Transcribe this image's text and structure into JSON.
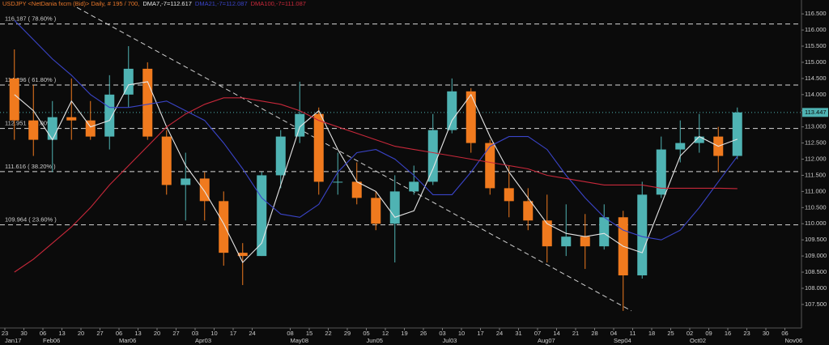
{
  "chart_data": {
    "type": "candlestick",
    "title": "USDJPY <NetDania fxcm (Bid)> Daily, # 195 / 700,",
    "title_color": "#e8772a",
    "categories": [
      "23",
      "30",
      "06",
      "13",
      "20",
      "27",
      "06",
      "13",
      "20",
      "27",
      "03",
      "10",
      "17",
      "24",
      null,
      "08",
      "15",
      "22",
      "29",
      "05",
      "12",
      "19",
      "26",
      "03",
      "10",
      "17",
      "24",
      "31",
      "07",
      "14",
      "21",
      "28",
      "04",
      "11",
      "18",
      "25",
      "02",
      "09",
      "16",
      "23",
      "30",
      "06"
    ],
    "month_labels": [
      "Jan17",
      null,
      "Feb06",
      null,
      null,
      null,
      "Mar06",
      null,
      null,
      null,
      "Apr03",
      null,
      null,
      null,
      null,
      "May08",
      null,
      null,
      null,
      "Jun05",
      null,
      null,
      null,
      "Jul03",
      null,
      null,
      null,
      null,
      "Aug07",
      null,
      null,
      null,
      "Sep04",
      null,
      null,
      null,
      "Oct02",
      null,
      null,
      null,
      null,
      "Nov06"
    ],
    "open": [
      114.5,
      113.2,
      112.6,
      113.3,
      113.2,
      112.7,
      114.0,
      114.8,
      112.7,
      111.2,
      111.4,
      110.7,
      109.1,
      109.0,
      111.5,
      112.7,
      113.4,
      111.3,
      111.3,
      110.8,
      110.0,
      111.0,
      111.3,
      112.9,
      114.1,
      112.5,
      111.1,
      110.7,
      110.1,
      109.3,
      109.6,
      109.3,
      110.2,
      108.4,
      110.9,
      112.3,
      112.5,
      112.7,
      112.1,
      null,
      null,
      null
    ],
    "high": [
      115.4,
      114.3,
      113.8,
      114.5,
      113.8,
      114.6,
      115.5,
      115.0,
      112.9,
      112.2,
      111.6,
      111.0,
      109.4,
      111.6,
      112.9,
      114.4,
      113.6,
      112.2,
      111.9,
      111.0,
      111.5,
      111.8,
      113.4,
      114.5,
      114.2,
      112.6,
      111.8,
      111.1,
      110.9,
      110.6,
      110.3,
      110.6,
      110.4,
      111.3,
      112.7,
      113.2,
      113.4,
      113.0,
      113.6,
      null,
      null,
      null
    ],
    "low": [
      112.6,
      112.1,
      111.6,
      112.6,
      112.6,
      112.3,
      113.6,
      112.6,
      110.9,
      110.1,
      110.1,
      108.7,
      108.1,
      109.0,
      111.1,
      112.5,
      110.9,
      110.9,
      110.6,
      109.8,
      108.8,
      110.9,
      111.2,
      112.8,
      112.2,
      110.9,
      110.2,
      109.8,
      108.8,
      109.0,
      108.6,
      109.2,
      107.3,
      108.3,
      110.8,
      111.9,
      112.2,
      111.6,
      112.0,
      null,
      null,
      null
    ],
    "close": [
      113.2,
      112.6,
      113.3,
      113.2,
      112.7,
      114.0,
      114.8,
      112.7,
      111.2,
      111.4,
      110.7,
      109.1,
      109.0,
      111.5,
      112.7,
      113.4,
      111.3,
      111.3,
      110.8,
      110.0,
      111.0,
      111.3,
      112.9,
      114.1,
      112.5,
      111.1,
      110.7,
      110.1,
      109.3,
      109.6,
      109.3,
      110.2,
      108.4,
      110.9,
      112.3,
      112.5,
      112.7,
      112.1,
      113.447,
      null,
      null,
      null
    ],
    "up_color": "#4fb3b3",
    "down_color": "#f07a1e",
    "series": [
      {
        "name": "DMA7,-7=112.617",
        "color": "#e6e6e6",
        "values": [
          114.0,
          113.5,
          112.6,
          113.8,
          113.0,
          113.2,
          114.3,
          114.4,
          113.0,
          111.8,
          111.0,
          110.0,
          108.8,
          109.4,
          111.2,
          113.0,
          113.5,
          112.3,
          111.3,
          111.0,
          110.2,
          110.4,
          111.7,
          113.2,
          114.0,
          112.7,
          111.6,
          110.8,
          110.0,
          109.7,
          109.6,
          109.7,
          109.3,
          109.1,
          110.6,
          112.1,
          112.7,
          112.4,
          112.617,
          null,
          null,
          null
        ]
      },
      {
        "name": "DMA21,-7=112.087",
        "color": "#3a44c8",
        "values": [
          116.3,
          115.7,
          115.1,
          114.6,
          114.0,
          113.6,
          113.6,
          113.7,
          113.8,
          113.5,
          113.2,
          112.5,
          111.7,
          110.8,
          110.3,
          110.2,
          110.6,
          111.6,
          112.2,
          112.3,
          112.0,
          111.5,
          110.9,
          110.9,
          111.6,
          112.4,
          112.7,
          112.7,
          112.3,
          111.5,
          110.8,
          110.2,
          109.8,
          109.6,
          109.5,
          109.8,
          110.5,
          111.3,
          112.087,
          null,
          null,
          null
        ]
      },
      {
        "name": "DMA100,-7=111.087",
        "color": "#c8283a",
        "values": [
          108.5,
          108.9,
          109.4,
          109.9,
          110.5,
          111.2,
          111.8,
          112.4,
          113.0,
          113.4,
          113.7,
          113.9,
          113.9,
          113.8,
          113.7,
          113.5,
          113.2,
          113.0,
          112.8,
          112.6,
          112.4,
          112.3,
          112.2,
          112.1,
          112.0,
          111.9,
          111.8,
          111.7,
          111.5,
          111.4,
          111.3,
          111.2,
          111.2,
          111.2,
          111.1,
          111.1,
          111.1,
          111.1,
          111.087,
          null,
          null,
          null
        ]
      }
    ],
    "ylim": [
      106.77,
      116.93
    ],
    "yticks": [
      {
        "value": 107.5,
        "label": "107.500"
      },
      {
        "value": 108,
        "label": "108.000"
      },
      {
        "value": 108.5,
        "label": "108.500"
      },
      {
        "value": 109,
        "label": "109.000"
      },
      {
        "value": 109.5,
        "label": "109.500"
      },
      {
        "value": 110,
        "label": "110.000"
      },
      {
        "value": 110.5,
        "label": "110.500"
      },
      {
        "value": 111,
        "label": "111.000"
      },
      {
        "value": 111.5,
        "label": "111.500"
      },
      {
        "value": 112,
        "label": "112.000"
      },
      {
        "value": 112.5,
        "label": "112.500"
      },
      {
        "value": 113,
        "label": "113.000"
      },
      {
        "value": 113.5,
        "label": "113.500"
      },
      {
        "value": 114,
        "label": "114.000"
      },
      {
        "value": 114.5,
        "label": "114.500"
      },
      {
        "value": 115,
        "label": "115.000"
      },
      {
        "value": 115.5,
        "label": "115.500"
      },
      {
        "value": 116,
        "label": "116.000"
      },
      {
        "value": 116.5,
        "label": "116.500"
      }
    ],
    "fib_levels": [
      {
        "value": 116.187,
        "label": "116.187 ( 78.60% )"
      },
      {
        "value": 114.296,
        "label": "114.296 ( 61.80% )"
      },
      {
        "value": 112.951,
        "label": "112.951 ( 50.00% )"
      },
      {
        "value": 111.616,
        "label": "111.616 ( 38.20% )"
      },
      {
        "value": 109.964,
        "label": "109.964 ( 23.60% )"
      }
    ],
    "last_price": 113.447,
    "last_price_color": "#4fb3b3",
    "trendline": {
      "start": 116.7,
      "end": 107.3
    }
  }
}
